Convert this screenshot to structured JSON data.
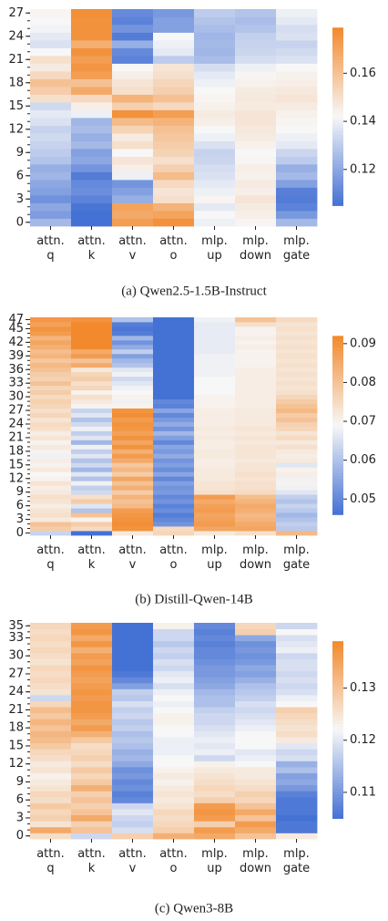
{
  "chart_data": [
    {
      "type": "heatmap",
      "caption": "(a) Qwen2.5-1.5B-Instruct",
      "x_categories": [
        "attn. q",
        "attn. k",
        "attn. v",
        "attn. o",
        "mlp. up",
        "mlp. down",
        "mlp. gate"
      ],
      "yticks": [
        0,
        3,
        6,
        9,
        12,
        15,
        18,
        21,
        24,
        27
      ],
      "clim": [
        0.105,
        0.179
      ],
      "cticks": [
        0.12,
        0.14,
        0.16
      ],
      "colormap": [
        "#4471d4",
        "#f7f7f7",
        "#f2892c"
      ],
      "values": [
        [
          0.125,
          0.105,
          0.172,
          0.176,
          0.14,
          0.143,
          0.125
        ],
        [
          0.117,
          0.105,
          0.168,
          0.17,
          0.142,
          0.145,
          0.116
        ],
        [
          0.12,
          0.106,
          0.17,
          0.165,
          0.138,
          0.146,
          0.11
        ],
        [
          0.114,
          0.11,
          0.122,
          0.15,
          0.143,
          0.148,
          0.108
        ],
        [
          0.118,
          0.113,
          0.118,
          0.148,
          0.14,
          0.145,
          0.109
        ],
        [
          0.12,
          0.112,
          0.115,
          0.152,
          0.138,
          0.146,
          0.118
        ],
        [
          0.124,
          0.108,
          0.14,
          0.162,
          0.136,
          0.144,
          0.125
        ],
        [
          0.122,
          0.115,
          0.145,
          0.155,
          0.135,
          0.145,
          0.122
        ],
        [
          0.128,
          0.12,
          0.148,
          0.15,
          0.133,
          0.143,
          0.13
        ],
        [
          0.13,
          0.118,
          0.142,
          0.154,
          0.132,
          0.142,
          0.133
        ],
        [
          0.132,
          0.125,
          0.15,
          0.156,
          0.136,
          0.144,
          0.138
        ],
        [
          0.134,
          0.122,
          0.146,
          0.158,
          0.14,
          0.146,
          0.14
        ],
        [
          0.132,
          0.126,
          0.154,
          0.16,
          0.142,
          0.147,
          0.142
        ],
        [
          0.136,
          0.124,
          0.162,
          0.165,
          0.145,
          0.148,
          0.143
        ],
        [
          0.138,
          0.14,
          0.176,
          0.172,
          0.146,
          0.148,
          0.144
        ],
        [
          0.134,
          0.145,
          0.155,
          0.152,
          0.144,
          0.146,
          0.146
        ],
        [
          0.15,
          0.152,
          0.165,
          0.16,
          0.143,
          0.147,
          0.148
        ],
        [
          0.156,
          0.168,
          0.15,
          0.155,
          0.142,
          0.146,
          0.147
        ],
        [
          0.16,
          0.16,
          0.148,
          0.153,
          0.14,
          0.144,
          0.145
        ],
        [
          0.152,
          0.172,
          0.145,
          0.15,
          0.138,
          0.143,
          0.144
        ],
        [
          0.146,
          0.175,
          0.142,
          0.148,
          0.135,
          0.14,
          0.142
        ],
        [
          0.15,
          0.172,
          0.11,
          0.13,
          0.126,
          0.135,
          0.136
        ],
        [
          0.142,
          0.176,
          0.112,
          0.138,
          0.124,
          0.133,
          0.134
        ],
        [
          0.136,
          0.166,
          0.122,
          0.14,
          0.125,
          0.132,
          0.132
        ],
        [
          0.138,
          0.176,
          0.108,
          0.142,
          0.124,
          0.131,
          0.136
        ],
        [
          0.141,
          0.176,
          0.115,
          0.118,
          0.126,
          0.128,
          0.135
        ],
        [
          0.142,
          0.176,
          0.11,
          0.118,
          0.128,
          0.126,
          0.138
        ],
        [
          0.143,
          0.177,
          0.112,
          0.116,
          0.13,
          0.128,
          0.14
        ]
      ]
    },
    {
      "type": "heatmap",
      "caption": "(b) Distill-Qwen-14B",
      "x_categories": [
        "attn. q",
        "attn. k",
        "attn. v",
        "attn. o",
        "mlp. up",
        "mlp. down",
        "mlp. gate"
      ],
      "yticks": [
        0,
        3,
        6,
        9,
        12,
        15,
        18,
        21,
        24,
        27,
        30,
        33,
        36,
        39,
        42,
        45,
        47
      ],
      "clim": [
        0.046,
        0.092
      ],
      "cticks": [
        0.05,
        0.06,
        0.07,
        0.08,
        0.09
      ],
      "colormap": [
        "#4471d4",
        "#f7f7f7",
        "#f2892c"
      ],
      "values": [
        [
          0.063,
          0.046,
          0.072,
          0.076,
          0.072,
          0.074,
          0.082
        ],
        [
          0.078,
          0.075,
          0.09,
          0.075,
          0.086,
          0.086,
          0.061
        ],
        [
          0.08,
          0.078,
          0.091,
          0.052,
          0.088,
          0.085,
          0.062
        ],
        [
          0.072,
          0.07,
          0.09,
          0.05,
          0.087,
          0.083,
          0.06
        ],
        [
          0.074,
          0.08,
          0.089,
          0.048,
          0.086,
          0.082,
          0.058
        ],
        [
          0.073,
          0.06,
          0.088,
          0.051,
          0.088,
          0.084,
          0.061
        ],
        [
          0.071,
          0.066,
          0.082,
          0.049,
          0.087,
          0.085,
          0.063
        ],
        [
          0.073,
          0.078,
          0.08,
          0.052,
          0.085,
          0.083,
          0.06
        ],
        [
          0.074,
          0.074,
          0.083,
          0.05,
          0.088,
          0.081,
          0.062
        ],
        [
          0.072,
          0.064,
          0.078,
          0.053,
          0.074,
          0.075,
          0.066
        ],
        [
          0.071,
          0.062,
          0.084,
          0.052,
          0.073,
          0.074,
          0.068
        ],
        [
          0.073,
          0.068,
          0.08,
          0.054,
          0.073,
          0.074,
          0.07
        ],
        [
          0.07,
          0.06,
          0.086,
          0.05,
          0.072,
          0.073,
          0.068
        ],
        [
          0.069,
          0.066,
          0.078,
          0.055,
          0.072,
          0.074,
          0.071
        ],
        [
          0.072,
          0.058,
          0.082,
          0.051,
          0.072,
          0.073,
          0.07
        ],
        [
          0.07,
          0.064,
          0.079,
          0.054,
          0.071,
          0.073,
          0.066
        ],
        [
          0.071,
          0.06,
          0.085,
          0.052,
          0.071,
          0.072,
          0.072
        ],
        [
          0.068,
          0.066,
          0.088,
          0.056,
          0.072,
          0.073,
          0.071
        ],
        [
          0.07,
          0.062,
          0.084,
          0.053,
          0.072,
          0.073,
          0.072
        ],
        [
          0.072,
          0.068,
          0.09,
          0.055,
          0.071,
          0.073,
          0.074
        ],
        [
          0.07,
          0.058,
          0.086,
          0.05,
          0.071,
          0.072,
          0.072
        ],
        [
          0.073,
          0.066,
          0.09,
          0.054,
          0.072,
          0.073,
          0.075
        ],
        [
          0.071,
          0.062,
          0.087,
          0.058,
          0.071,
          0.072,
          0.073
        ],
        [
          0.074,
          0.068,
          0.089,
          0.052,
          0.072,
          0.073,
          0.076
        ],
        [
          0.075,
          0.064,
          0.09,
          0.056,
          0.071,
          0.072,
          0.077
        ],
        [
          0.073,
          0.06,
          0.088,
          0.053,
          0.071,
          0.072,
          0.08
        ],
        [
          0.076,
          0.066,
          0.091,
          0.05,
          0.071,
          0.072,
          0.078
        ],
        [
          0.074,
          0.063,
          0.09,
          0.055,
          0.071,
          0.072,
          0.082
        ],
        [
          0.076,
          0.07,
          0.07,
          0.049,
          0.07,
          0.071,
          0.08
        ],
        [
          0.077,
          0.072,
          0.068,
          0.05,
          0.07,
          0.071,
          0.078
        ],
        [
          0.075,
          0.074,
          0.07,
          0.046,
          0.07,
          0.071,
          0.076
        ],
        [
          0.078,
          0.07,
          0.069,
          0.046,
          0.069,
          0.071,
          0.074
        ],
        [
          0.076,
          0.076,
          0.068,
          0.046,
          0.069,
          0.071,
          0.073
        ],
        [
          0.08,
          0.074,
          0.066,
          0.046,
          0.069,
          0.071,
          0.074
        ],
        [
          0.077,
          0.078,
          0.064,
          0.046,
          0.069,
          0.071,
          0.073
        ],
        [
          0.078,
          0.076,
          0.068,
          0.046,
          0.068,
          0.071,
          0.074
        ],
        [
          0.08,
          0.072,
          0.066,
          0.046,
          0.068,
          0.071,
          0.073
        ],
        [
          0.082,
          0.085,
          0.06,
          0.046,
          0.068,
          0.07,
          0.074
        ],
        [
          0.079,
          0.08,
          0.058,
          0.046,
          0.068,
          0.07,
          0.073
        ],
        [
          0.083,
          0.088,
          0.054,
          0.046,
          0.068,
          0.07,
          0.074
        ],
        [
          0.081,
          0.085,
          0.062,
          0.046,
          0.067,
          0.07,
          0.073
        ],
        [
          0.084,
          0.092,
          0.056,
          0.046,
          0.067,
          0.071,
          0.074
        ],
        [
          0.086,
          0.092,
          0.052,
          0.046,
          0.067,
          0.07,
          0.073
        ],
        [
          0.083,
          0.092,
          0.058,
          0.046,
          0.067,
          0.071,
          0.074
        ],
        [
          0.088,
          0.092,
          0.048,
          0.046,
          0.067,
          0.07,
          0.073
        ],
        [
          0.09,
          0.092,
          0.047,
          0.046,
          0.067,
          0.07,
          0.074
        ],
        [
          0.087,
          0.092,
          0.048,
          0.046,
          0.067,
          0.074,
          0.073
        ],
        [
          0.089,
          0.09,
          0.06,
          0.046,
          0.068,
          0.08,
          0.075
        ]
      ]
    },
    {
      "type": "heatmap",
      "caption": "(c) Qwen3-8B",
      "x_categories": [
        "attn. q",
        "attn. k",
        "attn. v",
        "attn. o",
        "mlp. up",
        "mlp. down",
        "mlp. gate"
      ],
      "yticks": [
        0,
        3,
        6,
        9,
        12,
        15,
        18,
        21,
        24,
        27,
        30,
        33,
        35
      ],
      "clim": [
        0.105,
        0.139
      ],
      "cticks": [
        0.11,
        0.12,
        0.13
      ],
      "colormap": [
        "#4471d4",
        "#f7f7f7",
        "#f2892c"
      ],
      "values": [
        [
          0.126,
          0.118,
          0.128,
          0.133,
          0.134,
          0.13,
          0.124
        ],
        [
          0.134,
          0.13,
          0.119,
          0.128,
          0.136,
          0.134,
          0.106
        ],
        [
          0.125,
          0.128,
          0.117,
          0.127,
          0.128,
          0.136,
          0.106
        ],
        [
          0.128,
          0.134,
          0.118,
          0.126,
          0.136,
          0.13,
          0.105
        ],
        [
          0.127,
          0.13,
          0.12,
          0.127,
          0.137,
          0.134,
          0.106
        ],
        [
          0.129,
          0.128,
          0.118,
          0.125,
          0.136,
          0.13,
          0.106
        ],
        [
          0.126,
          0.13,
          0.108,
          0.124,
          0.128,
          0.127,
          0.106
        ],
        [
          0.127,
          0.128,
          0.107,
          0.125,
          0.126,
          0.128,
          0.107
        ],
        [
          0.125,
          0.133,
          0.109,
          0.124,
          0.127,
          0.126,
          0.11
        ],
        [
          0.124,
          0.129,
          0.108,
          0.123,
          0.126,
          0.125,
          0.112
        ],
        [
          0.123,
          0.127,
          0.11,
          0.124,
          0.125,
          0.124,
          0.111
        ],
        [
          0.125,
          0.129,
          0.109,
          0.123,
          0.124,
          0.124,
          0.115
        ],
        [
          0.124,
          0.126,
          0.112,
          0.122,
          0.123,
          0.122,
          0.113
        ],
        [
          0.126,
          0.128,
          0.114,
          0.122,
          0.118,
          0.121,
          0.119
        ],
        [
          0.127,
          0.127,
          0.113,
          0.121,
          0.121,
          0.12,
          0.118
        ],
        [
          0.129,
          0.126,
          0.115,
          0.121,
          0.12,
          0.122,
          0.12
        ],
        [
          0.131,
          0.129,
          0.116,
          0.121,
          0.121,
          0.122,
          0.124
        ],
        [
          0.132,
          0.133,
          0.115,
          0.122,
          0.12,
          0.122,
          0.126
        ],
        [
          0.13,
          0.136,
          0.117,
          0.122,
          0.119,
          0.121,
          0.125
        ],
        [
          0.132,
          0.134,
          0.116,
          0.123,
          0.118,
          0.12,
          0.126
        ],
        [
          0.129,
          0.136,
          0.118,
          0.123,
          0.118,
          0.119,
          0.127
        ],
        [
          0.131,
          0.137,
          0.117,
          0.122,
          0.117,
          0.118,
          0.128
        ],
        [
          0.127,
          0.137,
          0.119,
          0.121,
          0.115,
          0.119,
          0.122
        ],
        [
          0.118,
          0.136,
          0.116,
          0.122,
          0.115,
          0.117,
          0.121
        ],
        [
          0.125,
          0.137,
          0.117,
          0.121,
          0.114,
          0.116,
          0.119
        ],
        [
          0.126,
          0.136,
          0.111,
          0.119,
          0.112,
          0.115,
          0.118
        ],
        [
          0.127,
          0.135,
          0.108,
          0.121,
          0.111,
          0.113,
          0.119
        ],
        [
          0.126,
          0.136,
          0.106,
          0.12,
          0.11,
          0.111,
          0.118
        ],
        [
          0.127,
          0.137,
          0.105,
          0.118,
          0.11,
          0.112,
          0.119
        ],
        [
          0.125,
          0.135,
          0.105,
          0.119,
          0.109,
          0.11,
          0.119
        ],
        [
          0.126,
          0.136,
          0.105,
          0.117,
          0.108,
          0.109,
          0.118
        ],
        [
          0.127,
          0.133,
          0.105,
          0.118,
          0.108,
          0.11,
          0.121
        ],
        [
          0.126,
          0.137,
          0.105,
          0.116,
          0.107,
          0.109,
          0.12
        ],
        [
          0.127,
          0.134,
          0.105,
          0.118,
          0.108,
          0.112,
          0.119
        ],
        [
          0.126,
          0.137,
          0.105,
          0.118,
          0.107,
          0.128,
          0.122
        ],
        [
          0.127,
          0.136,
          0.105,
          0.123,
          0.108,
          0.127,
          0.118
        ]
      ]
    }
  ]
}
